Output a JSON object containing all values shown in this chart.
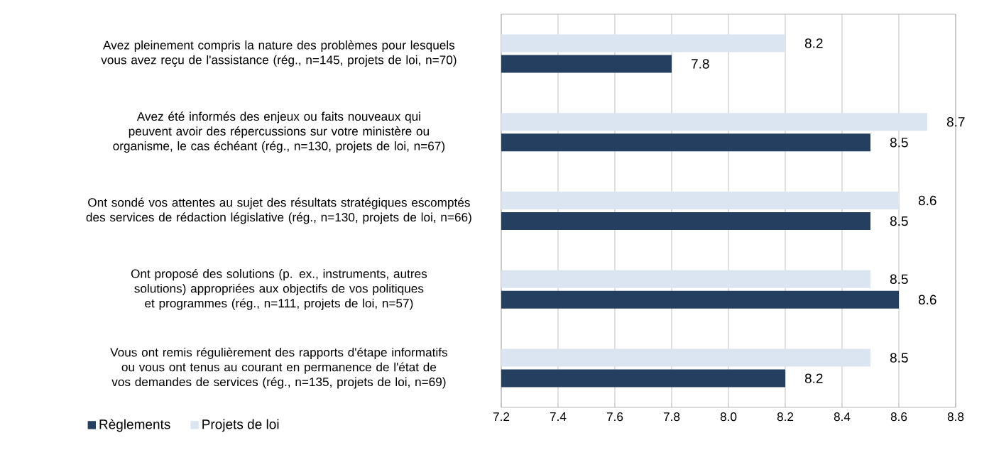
{
  "chart_data": {
    "type": "bar",
    "orientation": "horizontal",
    "categories": [
      "Avez pleinement compris la nature des problèmes pour lesquels vous avez reçu de l'assistance (rég., n=145, projets de loi, n=70)",
      "Avez été informés des enjeux ou faits nouveaux qui peuvent avoir des répercussions sur votre ministère ou organisme, le cas échéant (rég., n=130, projets de loi, n=67)",
      "Ont sondé vos attentes au sujet des résultats stratégiques escomptés des services de rédaction législative (rég., n=130, projets de loi, n=66)",
      "Ont proposé des solutions (p. ex., instruments, autres solutions) appropriées aux objectifs de vos politiques et programmes (rég., n=111, projets de loi, n=57)",
      "Vous ont remis régulièrement des rapports d'étape informatifs ou vous ont tenus au courant en permanence de l'état de vos demandes de services (rég., n=135, projets de loi, n=69)"
    ],
    "series": [
      {
        "name": "Règlements",
        "color": "#243f60",
        "values": [
          7.8,
          8.5,
          8.5,
          8.6,
          8.2
        ]
      },
      {
        "name": "Projets de loi",
        "color": "#dbe5f1",
        "values": [
          8.2,
          8.7,
          8.6,
          8.5,
          8.5
        ]
      }
    ],
    "xlim": [
      7.2,
      8.8
    ],
    "xticks": [
      7.2,
      7.4,
      7.6,
      7.8,
      {
        "value": 8,
        "label": "8.0"
      },
      8.2,
      8.4,
      8.6,
      8.8
    ],
    "grid": "x",
    "legend": "bottom left",
    "data_labels": true
  }
}
